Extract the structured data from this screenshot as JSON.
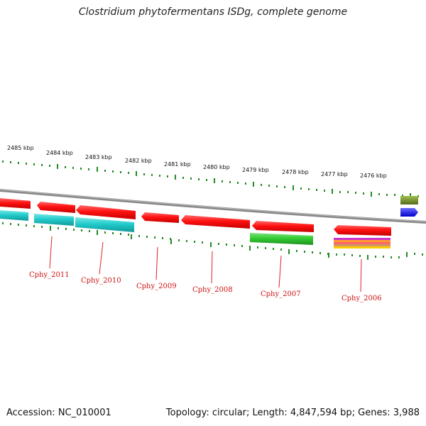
{
  "title": "Clostridium phytofermentans ISDg, complete genome",
  "footer": {
    "accession": "Accession: NC_010001",
    "summary": "Topology: circular; Length: 4,847,594 bp; Genes: 3,988"
  },
  "scale_labels": [
    "2485 kbp",
    "2484 kbp",
    "2483 kbp",
    "2482 kbp",
    "2481 kbp",
    "2480 kbp",
    "2479 kbp",
    "2478 kbp",
    "2477 kbp",
    "2476 kbp"
  ],
  "gene_labels": [
    "Cphy_2011",
    "Cphy_2010",
    "Cphy_2009",
    "Cphy_2008",
    "Cphy_2007",
    "Cphy_2006"
  ],
  "colors": {
    "backbone": "#888888",
    "cds": "#ff1111",
    "cog_cyan": "#22cccc",
    "cog_green": "#33cc33",
    "olive": "#6b8e23",
    "blue": "#1a1aff",
    "ticks": "#228b22",
    "label": "#cc1111"
  }
}
